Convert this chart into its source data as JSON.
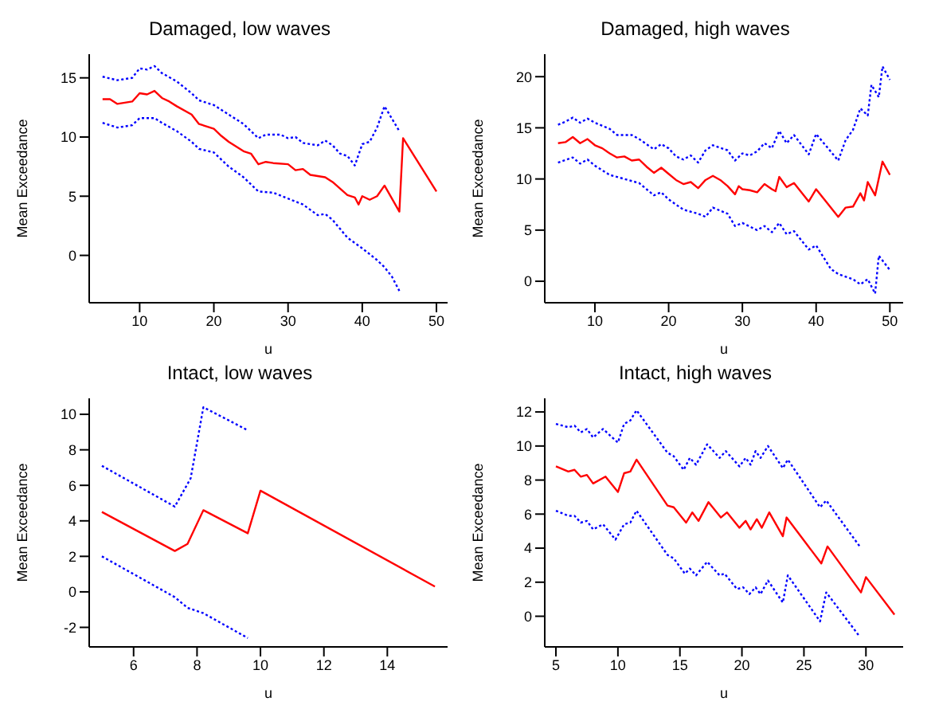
{
  "chart_data": [
    {
      "type": "line",
      "title": "Damaged, low waves",
      "xlabel": "u",
      "ylabel": "Mean Exceedance",
      "xlim": [
        3.2,
        51.5
      ],
      "ylim": [
        -4,
        17
      ],
      "xticks": [
        10,
        20,
        30,
        40,
        50
      ],
      "yticks": [
        0,
        5,
        10,
        15
      ],
      "series": [
        {
          "color": "#ff0000",
          "line_style": "solid",
          "x": [
            5,
            6,
            7,
            8,
            9,
            10,
            11,
            12,
            13,
            14,
            15,
            17,
            18,
            20,
            21,
            22,
            24,
            25,
            26,
            27,
            28,
            30,
            31,
            32,
            33,
            35,
            36,
            38,
            39,
            39.5,
            40,
            41,
            42,
            43,
            45,
            45.5,
            50
          ],
          "values": [
            13.2,
            13.2,
            12.8,
            12.9,
            13.0,
            13.7,
            13.6,
            13.9,
            13.3,
            13.0,
            12.6,
            11.9,
            11.1,
            10.7,
            10.1,
            9.6,
            8.8,
            8.6,
            7.7,
            7.9,
            7.8,
            7.7,
            7.2,
            7.3,
            6.8,
            6.6,
            6.2,
            5.1,
            4.9,
            4.3,
            5.0,
            4.7,
            5.0,
            5.9,
            3.7,
            9.9,
            5.4
          ]
        },
        {
          "color": "#0000ff",
          "line_style": "dotted",
          "x": [
            5,
            7,
            9,
            10,
            11,
            12,
            13,
            15,
            17,
            18,
            20,
            22,
            24,
            26,
            27,
            29,
            30,
            31,
            32,
            34,
            35,
            36,
            37,
            38,
            39,
            40,
            41,
            42,
            43,
            45
          ],
          "values": [
            15.1,
            14.8,
            15.0,
            15.8,
            15.7,
            16.0,
            15.4,
            14.7,
            13.7,
            13.1,
            12.7,
            11.9,
            11.1,
            9.9,
            10.2,
            10.2,
            9.9,
            10.0,
            9.5,
            9.3,
            9.7,
            9.3,
            8.6,
            8.4,
            7.6,
            9.4,
            9.6,
            10.8,
            12.6,
            10.5
          ]
        },
        {
          "color": "#0000ff",
          "line_style": "dotted",
          "x": [
            5,
            7,
            9,
            10,
            12,
            13,
            15,
            17,
            18,
            20,
            22,
            24,
            26,
            28,
            30,
            32,
            34,
            35,
            36,
            38,
            40,
            42,
            43,
            44,
            45
          ],
          "values": [
            11.2,
            10.8,
            11.0,
            11.6,
            11.6,
            11.2,
            10.5,
            9.6,
            9.0,
            8.7,
            7.5,
            6.6,
            5.4,
            5.3,
            4.8,
            4.3,
            3.4,
            3.5,
            3.0,
            1.5,
            0.6,
            -0.4,
            -1.0,
            -1.8,
            -3.0
          ]
        }
      ]
    },
    {
      "type": "line",
      "title": "Damaged, high waves",
      "xlabel": "u",
      "ylabel": "Mean Exceedance",
      "xlim": [
        3.2,
        51.8
      ],
      "ylim": [
        -2.1,
        22.2
      ],
      "xticks": [
        10,
        20,
        30,
        40,
        50
      ],
      "yticks": [
        0,
        5,
        10,
        15,
        20
      ],
      "series": [
        {
          "color": "#ff0000",
          "line_style": "solid",
          "x": [
            5,
            6,
            7,
            8,
            9,
            10,
            11,
            12,
            13,
            14,
            15,
            16,
            17,
            18,
            19,
            20,
            21,
            22,
            23,
            24,
            25,
            26,
            27,
            28,
            29,
            29.5,
            30,
            31,
            32,
            33,
            34,
            34.5,
            35,
            36,
            37,
            39,
            40,
            43,
            44,
            45,
            46,
            46.5,
            47,
            48,
            49,
            50
          ],
          "values": [
            13.5,
            13.6,
            14.1,
            13.5,
            13.9,
            13.3,
            13.0,
            12.5,
            12.1,
            12.2,
            11.8,
            11.9,
            11.2,
            10.6,
            11.1,
            10.5,
            9.9,
            9.5,
            9.7,
            9.1,
            9.9,
            10.3,
            9.9,
            9.3,
            8.5,
            9.3,
            9.0,
            8.9,
            8.7,
            9.5,
            9.0,
            8.8,
            10.2,
            9.2,
            9.6,
            7.8,
            9.0,
            6.3,
            7.2,
            7.3,
            8.6,
            7.9,
            9.7,
            8.4,
            11.7,
            10.4
          ]
        },
        {
          "color": "#0000ff",
          "line_style": "dotted",
          "x": [
            5,
            6,
            7,
            8,
            9,
            10,
            12,
            13,
            15,
            16,
            18,
            19,
            20,
            21,
            22,
            23,
            24,
            25,
            26,
            28,
            29,
            30,
            31,
            32,
            33,
            34,
            35,
            36,
            37,
            39,
            40,
            43,
            44,
            45,
            46,
            47,
            47.5,
            48.5,
            49,
            50
          ],
          "values": [
            15.3,
            15.6,
            16.0,
            15.5,
            15.9,
            15.5,
            14.9,
            14.3,
            14.3,
            13.9,
            12.9,
            13.4,
            13.0,
            12.2,
            11.9,
            12.3,
            11.6,
            12.8,
            13.3,
            12.8,
            11.8,
            12.5,
            12.3,
            12.7,
            13.5,
            13.0,
            14.7,
            13.5,
            14.3,
            12.4,
            14.4,
            11.8,
            13.8,
            14.8,
            16.9,
            16.2,
            19.2,
            18.0,
            21.0,
            19.7
          ]
        },
        {
          "color": "#0000ff",
          "line_style": "dotted",
          "x": [
            5,
            7,
            8,
            9,
            10,
            12,
            14,
            16,
            18,
            19,
            20,
            22,
            24,
            25,
            26,
            28,
            29,
            30,
            32,
            33,
            34,
            35,
            36,
            37,
            39,
            40,
            42,
            43,
            45,
            46,
            47,
            48,
            48.5,
            50
          ],
          "values": [
            11.6,
            12.1,
            11.5,
            11.9,
            11.3,
            10.4,
            10.0,
            9.6,
            8.4,
            8.7,
            8.0,
            7.0,
            6.6,
            6.3,
            7.2,
            6.6,
            5.4,
            5.7,
            5.0,
            5.4,
            4.8,
            5.7,
            4.6,
            4.9,
            3.1,
            3.5,
            1.2,
            0.7,
            0.2,
            -0.3,
            0.2,
            -1.2,
            2.5,
            1.1
          ]
        }
      ]
    },
    {
      "type": "line",
      "title": "Intact, low waves",
      "xlabel": "u",
      "ylabel": "Mean Exceedance",
      "xlim": [
        4.6,
        15.9
      ],
      "ylim": [
        -3.1,
        10.9
      ],
      "xticks": [
        6,
        8,
        10,
        12,
        14
      ],
      "yticks": [
        -2,
        0,
        2,
        4,
        6,
        8,
        10
      ],
      "series": [
        {
          "color": "#ff0000",
          "line_style": "solid",
          "x": [
            5,
            7.3,
            7.7,
            8.2,
            9.6,
            10,
            15.5
          ],
          "values": [
            4.5,
            2.3,
            2.7,
            4.6,
            3.3,
            5.7,
            0.3
          ]
        },
        {
          "color": "#0000ff",
          "line_style": "dotted",
          "x": [
            5,
            7.3,
            7.8,
            8.2,
            9.6
          ],
          "values": [
            7.1,
            4.8,
            6.4,
            10.4,
            9.1
          ]
        },
        {
          "color": "#0000ff",
          "line_style": "dotted",
          "x": [
            5,
            7.3,
            7.7,
            8.2,
            9.6
          ],
          "values": [
            2.0,
            -0.3,
            -0.9,
            -1.2,
            -2.6
          ]
        }
      ]
    },
    {
      "type": "line",
      "title": "Intact, high waves",
      "xlabel": "u",
      "ylabel": "Mean Exceedance",
      "xlim": [
        4.1,
        33
      ],
      "ylim": [
        -1.8,
        12.8
      ],
      "xticks": [
        5,
        10,
        15,
        20,
        25,
        30
      ],
      "yticks": [
        0,
        2,
        4,
        6,
        8,
        10,
        12
      ],
      "series": [
        {
          "color": "#ff0000",
          "line_style": "solid",
          "x": [
            5,
            6,
            6.5,
            7,
            7.5,
            8,
            9,
            10,
            10.5,
            11,
            11.5,
            14,
            14.5,
            15.5,
            16,
            16.5,
            17.3,
            18.3,
            18.8,
            19.8,
            20.3,
            20.7,
            21.2,
            21.6,
            22.2,
            23.3,
            23.6,
            26.4,
            26.9,
            29.6,
            30,
            32.3
          ],
          "values": [
            8.8,
            8.5,
            8.6,
            8.2,
            8.3,
            7.8,
            8.2,
            7.3,
            8.4,
            8.5,
            9.2,
            6.5,
            6.4,
            5.5,
            6.1,
            5.6,
            6.7,
            5.8,
            6.1,
            5.2,
            5.6,
            5.1,
            5.7,
            5.2,
            6.1,
            4.7,
            5.8,
            3.1,
            4.1,
            1.4,
            2.3,
            0.1
          ]
        },
        {
          "color": "#0000ff",
          "line_style": "dotted",
          "x": [
            5,
            6,
            6.5,
            7,
            7.5,
            8,
            8.8,
            10,
            10.5,
            11,
            11.5,
            14,
            14.5,
            15.3,
            15.8,
            16.3,
            17.2,
            18.2,
            18.7,
            19.8,
            20.3,
            20.7,
            21.1,
            21.5,
            22.1,
            23.3,
            23.7,
            26.3,
            26.8,
            29.5
          ],
          "values": [
            11.3,
            11.1,
            11.2,
            10.8,
            11.0,
            10.5,
            11.0,
            10.2,
            11.3,
            11.5,
            12.1,
            9.6,
            9.4,
            8.6,
            9.3,
            8.9,
            10.1,
            9.3,
            9.7,
            8.8,
            9.3,
            8.9,
            9.7,
            9.3,
            10.0,
            8.7,
            9.2,
            6.4,
            6.8,
            4.1
          ]
        },
        {
          "color": "#0000ff",
          "line_style": "dotted",
          "x": [
            5,
            6,
            6.5,
            7,
            7.5,
            8,
            8.8,
            9.8,
            10.5,
            11,
            11.5,
            14,
            14.5,
            15.4,
            15.8,
            16.3,
            17.2,
            18.2,
            18.6,
            19.6,
            20.1,
            20.6,
            21.1,
            21.5,
            22.1,
            23.3,
            23.7,
            26.3,
            26.8,
            29.5
          ],
          "values": [
            6.2,
            5.9,
            5.9,
            5.5,
            5.6,
            5.1,
            5.4,
            4.5,
            5.4,
            5.5,
            6.2,
            3.6,
            3.4,
            2.5,
            2.8,
            2.4,
            3.2,
            2.4,
            2.5,
            1.6,
            1.7,
            1.3,
            1.7,
            1.3,
            2.1,
            0.8,
            2.4,
            -0.3,
            1.4,
            -1.2
          ]
        }
      ]
    }
  ]
}
